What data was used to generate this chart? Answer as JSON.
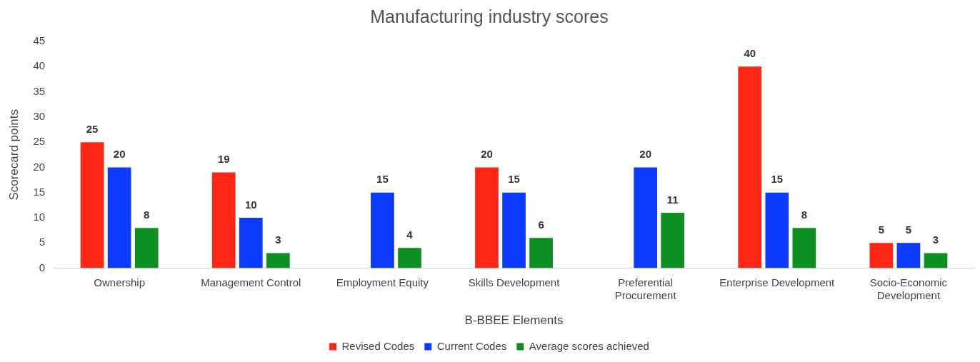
{
  "chart_data": {
    "type": "bar",
    "title": "Manufacturing industry scores",
    "xlabel": "B-BBEE Elements",
    "ylabel": "Scorecard points",
    "categories": [
      "Ownership",
      "Management Control",
      "Employment Equity",
      "Skills Development",
      "Preferential Procurement",
      "Enterprise Development",
      "Socio-Economic Development"
    ],
    "series": [
      {
        "name": "Revised Codes",
        "color": "#ff2514",
        "values": [
          25,
          19,
          null,
          20,
          null,
          40,
          5
        ]
      },
      {
        "name": "Current Codes",
        "color": "#0a3bff",
        "values": [
          20,
          10,
          15,
          15,
          20,
          15,
          5
        ]
      },
      {
        "name": "Average scores achieved",
        "color": "#0d8f22",
        "values": [
          8,
          3,
          4,
          6,
          11,
          8,
          3
        ]
      }
    ],
    "ylim": [
      0,
      45
    ],
    "yticks": [
      0,
      5,
      10,
      15,
      20,
      25,
      30,
      35,
      40,
      45
    ],
    "grid": false,
    "legend": "bottom",
    "data_labels": true
  }
}
